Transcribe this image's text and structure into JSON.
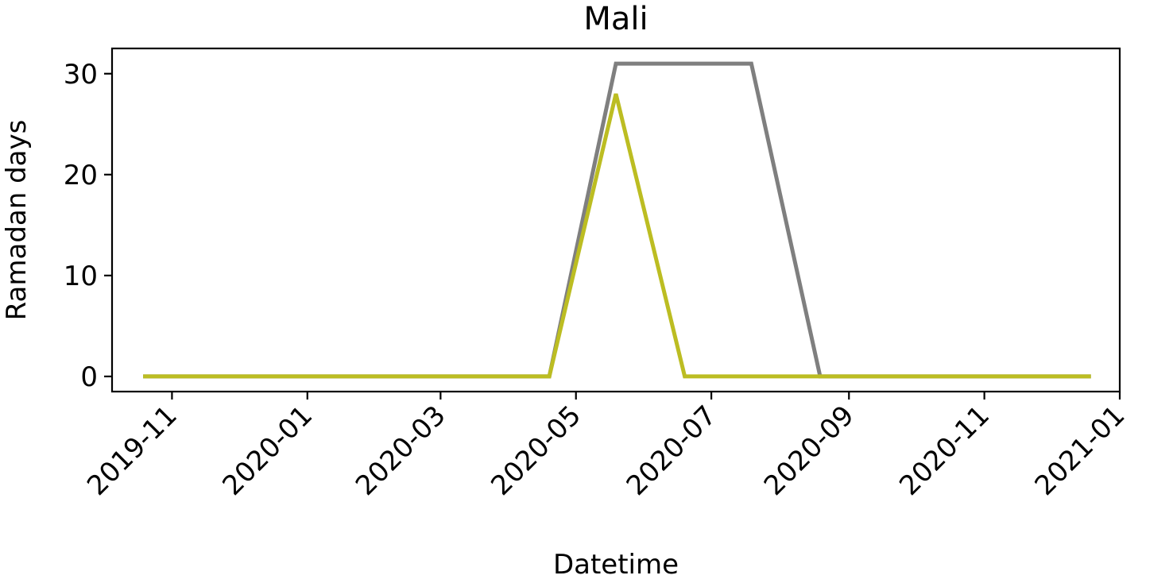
{
  "chart_data": {
    "type": "line",
    "title": "Mali",
    "xlabel": "Datetime",
    "ylabel": "Ramadan days",
    "xlim": [
      "2019-10-05",
      "2021-01-01"
    ],
    "ylim": [
      -1.5,
      32.5
    ],
    "x_ticks": [
      "2019-11",
      "2020-01",
      "2020-03",
      "2020-05",
      "2020-07",
      "2020-09",
      "2020-11",
      "2021-01"
    ],
    "y_ticks": [
      0,
      10,
      20,
      30
    ],
    "grid": false,
    "series": [
      {
        "color": "#7f7f7f",
        "x": [
          "2019-10-19",
          "2019-11-19",
          "2019-12-19",
          "2020-01-19",
          "2020-02-19",
          "2020-03-19",
          "2020-04-19",
          "2020-05-19",
          "2020-06-19",
          "2020-07-19",
          "2020-08-19",
          "2020-09-19",
          "2020-10-19",
          "2020-11-19",
          "2020-12-19"
        ],
        "values": [
          0,
          0,
          0,
          0,
          0,
          0,
          0,
          31,
          31,
          31,
          0,
          0,
          0,
          0,
          0
        ]
      },
      {
        "color": "#bcbd22",
        "x": [
          "2019-10-19",
          "2019-11-19",
          "2019-12-19",
          "2020-01-19",
          "2020-02-19",
          "2020-03-19",
          "2020-04-19",
          "2020-05-19",
          "2020-06-19",
          "2020-07-19",
          "2020-08-19",
          "2020-09-19",
          "2020-10-19",
          "2020-11-19",
          "2020-12-19"
        ],
        "values": [
          0,
          0,
          0,
          0,
          0,
          0,
          0,
          28,
          0,
          0,
          0,
          0,
          0,
          0,
          0
        ]
      }
    ]
  }
}
